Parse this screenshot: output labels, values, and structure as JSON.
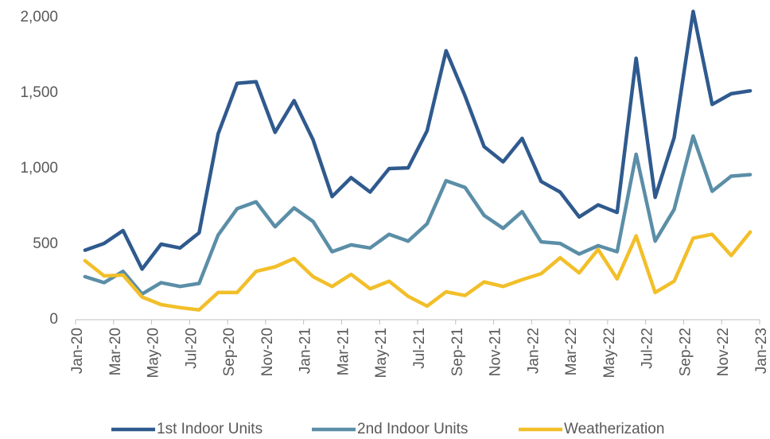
{
  "chart_data": {
    "type": "line",
    "categories": [
      "Jan-20",
      null,
      "Mar-20",
      null,
      "May-20",
      null,
      "Jul-20",
      null,
      "Sep-20",
      null,
      "Nov-20",
      null,
      "Jan-21",
      null,
      "Mar-21",
      null,
      "May-21",
      null,
      "Jul-21",
      null,
      "Sep-21",
      null,
      "Nov-21",
      null,
      "Jan-22",
      null,
      "Mar-22",
      null,
      "May-22",
      null,
      "Jul-22",
      null,
      "Sep-22",
      null,
      "Nov-22",
      null,
      "Jan-23"
    ],
    "series": [
      {
        "name": "1st Indoor Units",
        "color": "#2f5a8e",
        "values": [
          460,
          505,
          590,
          335,
          500,
          475,
          575,
          1230,
          1565,
          1575,
          1240,
          1450,
          1190,
          815,
          940,
          845,
          1000,
          1005,
          1250,
          1780,
          1480,
          1145,
          1045,
          1200,
          915,
          845,
          680,
          760,
          710,
          1730,
          810,
          1205,
          2040,
          1425,
          1495,
          1515,
          null
        ]
      },
      {
        "name": "2nd Indoor Units",
        "color": "#5b8ea7",
        "values": [
          285,
          245,
          320,
          170,
          245,
          220,
          240,
          560,
          735,
          780,
          615,
          740,
          650,
          450,
          495,
          475,
          565,
          520,
          635,
          920,
          875,
          690,
          605,
          715,
          515,
          505,
          435,
          490,
          450,
          1095,
          520,
          730,
          1215,
          850,
          950,
          960,
          null
        ]
      },
      {
        "name": "Weatherization",
        "color": "#f2bf2a",
        "values": [
          390,
          290,
          295,
          150,
          100,
          80,
          65,
          180,
          180,
          320,
          350,
          405,
          285,
          220,
          300,
          205,
          255,
          155,
          90,
          185,
          160,
          250,
          220,
          265,
          305,
          410,
          310,
          465,
          270,
          555,
          180,
          255,
          540,
          565,
          425,
          580,
          null
        ]
      }
    ],
    "ylim": [
      0,
      2000
    ],
    "yticks": [
      0,
      500,
      {
        "value": 1000,
        "label": "1,000"
      },
      {
        "value": 1500,
        "label": "1,500"
      },
      {
        "value": 2000,
        "label": "2,000"
      }
    ],
    "grid": false,
    "legend": "bottom"
  }
}
